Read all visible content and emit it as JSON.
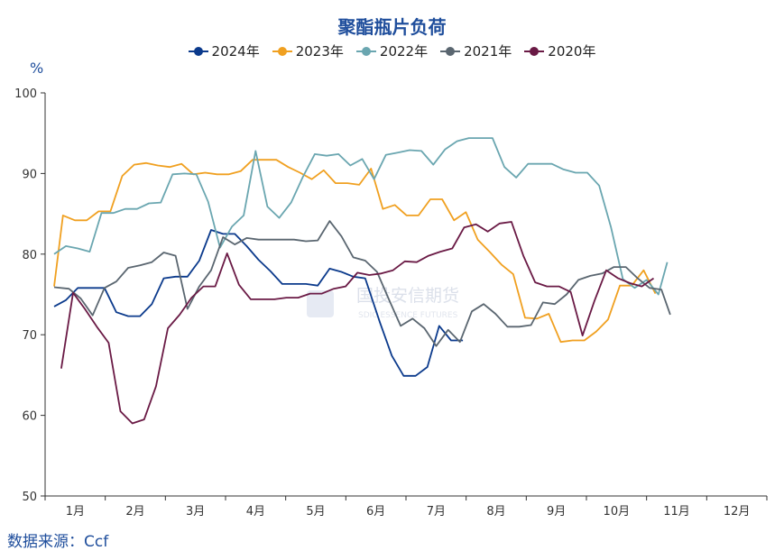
{
  "chart_data": {
    "type": "line",
    "title": "聚酯瓶片负荷",
    "ylabel": "%",
    "xlabel": "",
    "ylim": [
      50,
      100
    ],
    "yticks": [
      50,
      60,
      70,
      80,
      90,
      100
    ],
    "x_range": [
      0,
      12
    ],
    "categories": [
      "1月",
      "2月",
      "3月",
      "4月",
      "5月",
      "6月",
      "7月",
      "8月",
      "9月",
      "10月",
      "11月",
      "12月"
    ],
    "grid": false,
    "legend_position": "top-center",
    "source": "数据来源：Ccf",
    "watermark": "国投安信期货",
    "watermark_sub": "SDIC ESSENCE FUTURES",
    "series": [
      {
        "name": "2024年",
        "color": "#0b3a8c",
        "points": [
          [
            0.0,
            73.5
          ],
          [
            0.2,
            74.3
          ],
          [
            0.4,
            75.8
          ],
          [
            0.6,
            75.8
          ],
          [
            0.85,
            75.8
          ],
          [
            1.05,
            72.8
          ],
          [
            1.25,
            72.3
          ],
          [
            1.45,
            72.3
          ],
          [
            1.65,
            73.8
          ],
          [
            1.85,
            77.0
          ],
          [
            2.05,
            77.2
          ],
          [
            2.25,
            77.2
          ],
          [
            2.45,
            79.2
          ],
          [
            2.65,
            83.0
          ],
          [
            2.85,
            82.5
          ],
          [
            3.05,
            82.5
          ],
          [
            3.25,
            81.0
          ],
          [
            3.45,
            79.3
          ],
          [
            3.65,
            77.9
          ],
          [
            3.85,
            76.3
          ],
          [
            4.05,
            76.3
          ],
          [
            4.25,
            76.3
          ],
          [
            4.45,
            76.1
          ],
          [
            4.65,
            78.2
          ],
          [
            4.85,
            77.8
          ],
          [
            5.05,
            77.2
          ],
          [
            5.25,
            77.0
          ],
          [
            5.5,
            71.5
          ],
          [
            5.7,
            67.4
          ],
          [
            5.9,
            64.9
          ],
          [
            6.1,
            64.9
          ],
          [
            6.3,
            66.0
          ],
          [
            6.5,
            71.1
          ],
          [
            6.7,
            69.3
          ],
          [
            6.9,
            69.3
          ]
        ]
      },
      {
        "name": "2023年",
        "color": "#f0a020",
        "points": [
          [
            0.0,
            76.0
          ],
          [
            0.15,
            84.8
          ],
          [
            0.35,
            84.2
          ],
          [
            0.55,
            84.2
          ],
          [
            0.75,
            85.3
          ],
          [
            0.95,
            85.3
          ],
          [
            1.15,
            89.7
          ],
          [
            1.35,
            91.1
          ],
          [
            1.55,
            91.3
          ],
          [
            1.75,
            91.0
          ],
          [
            1.95,
            90.8
          ],
          [
            2.15,
            91.2
          ],
          [
            2.35,
            89.9
          ],
          [
            2.55,
            90.1
          ],
          [
            2.75,
            89.9
          ],
          [
            2.95,
            89.9
          ],
          [
            3.15,
            90.3
          ],
          [
            3.35,
            91.7
          ],
          [
            3.55,
            91.7
          ],
          [
            3.75,
            91.7
          ],
          [
            3.95,
            90.8
          ],
          [
            4.15,
            90.1
          ],
          [
            4.35,
            89.3
          ],
          [
            4.55,
            90.4
          ],
          [
            4.75,
            88.8
          ],
          [
            4.95,
            88.8
          ],
          [
            5.15,
            88.6
          ],
          [
            5.35,
            90.6
          ],
          [
            5.55,
            85.6
          ],
          [
            5.75,
            86.1
          ],
          [
            5.95,
            84.8
          ],
          [
            6.15,
            84.8
          ],
          [
            6.35,
            86.8
          ],
          [
            6.55,
            86.8
          ],
          [
            6.75,
            84.2
          ],
          [
            6.95,
            85.2
          ],
          [
            7.15,
            81.8
          ],
          [
            7.35,
            80.3
          ],
          [
            7.55,
            78.7
          ],
          [
            7.75,
            77.5
          ],
          [
            7.95,
            72.1
          ],
          [
            8.15,
            72.0
          ],
          [
            8.35,
            72.6
          ],
          [
            8.55,
            69.1
          ],
          [
            8.75,
            69.3
          ],
          [
            8.95,
            69.3
          ],
          [
            9.15,
            70.4
          ],
          [
            9.35,
            71.9
          ],
          [
            9.55,
            76.1
          ],
          [
            9.75,
            76.1
          ],
          [
            9.95,
            78.0
          ],
          [
            10.15,
            75.1
          ]
        ]
      },
      {
        "name": "2022年",
        "color": "#6aa6b0",
        "points": [
          [
            0.0,
            80.0
          ],
          [
            0.2,
            81.0
          ],
          [
            0.4,
            80.7
          ],
          [
            0.6,
            80.3
          ],
          [
            0.8,
            85.1
          ],
          [
            1.0,
            85.1
          ],
          [
            1.2,
            85.6
          ],
          [
            1.4,
            85.6
          ],
          [
            1.6,
            86.3
          ],
          [
            1.8,
            86.4
          ],
          [
            2.0,
            89.9
          ],
          [
            2.2,
            90.0
          ],
          [
            2.4,
            89.9
          ],
          [
            2.6,
            86.5
          ],
          [
            2.8,
            80.8
          ],
          [
            3.0,
            83.4
          ],
          [
            3.2,
            84.8
          ],
          [
            3.4,
            92.8
          ],
          [
            3.6,
            85.9
          ],
          [
            3.8,
            84.5
          ],
          [
            4.0,
            86.4
          ],
          [
            4.2,
            89.6
          ],
          [
            4.4,
            92.4
          ],
          [
            4.6,
            92.2
          ],
          [
            4.8,
            92.4
          ],
          [
            5.0,
            91.0
          ],
          [
            5.2,
            91.8
          ],
          [
            5.4,
            89.3
          ],
          [
            5.6,
            92.3
          ],
          [
            5.8,
            92.6
          ],
          [
            6.0,
            92.9
          ],
          [
            6.2,
            92.8
          ],
          [
            6.4,
            91.1
          ],
          [
            6.6,
            93.0
          ],
          [
            6.8,
            94.0
          ],
          [
            7.0,
            94.4
          ],
          [
            7.2,
            94.4
          ],
          [
            7.4,
            94.4
          ],
          [
            7.6,
            90.8
          ],
          [
            7.8,
            89.5
          ],
          [
            8.0,
            91.2
          ],
          [
            8.2,
            91.2
          ],
          [
            8.4,
            91.2
          ],
          [
            8.6,
            90.5
          ],
          [
            8.8,
            90.1
          ],
          [
            9.0,
            90.1
          ],
          [
            9.2,
            88.5
          ],
          [
            9.4,
            83.3
          ],
          [
            9.6,
            76.9
          ],
          [
            9.8,
            75.8
          ],
          [
            10.0,
            76.8
          ],
          [
            10.2,
            75.0
          ],
          [
            10.35,
            79.0
          ]
        ]
      },
      {
        "name": "2021年",
        "color": "#5a6670",
        "points": [
          [
            0.0,
            75.9
          ],
          [
            0.25,
            75.7
          ],
          [
            0.45,
            74.5
          ],
          [
            0.65,
            72.4
          ],
          [
            0.85,
            75.8
          ],
          [
            1.05,
            76.6
          ],
          [
            1.25,
            78.3
          ],
          [
            1.45,
            78.6
          ],
          [
            1.65,
            79.0
          ],
          [
            1.85,
            80.2
          ],
          [
            2.05,
            79.8
          ],
          [
            2.25,
            73.2
          ],
          [
            2.45,
            76.0
          ],
          [
            2.65,
            78.0
          ],
          [
            2.85,
            82.1
          ],
          [
            3.05,
            81.2
          ],
          [
            3.25,
            82.0
          ],
          [
            3.45,
            81.8
          ],
          [
            3.65,
            81.8
          ],
          [
            3.85,
            81.8
          ],
          [
            4.05,
            81.8
          ],
          [
            4.25,
            81.6
          ],
          [
            4.45,
            81.7
          ],
          [
            4.65,
            84.1
          ],
          [
            4.85,
            82.2
          ],
          [
            5.05,
            79.6
          ],
          [
            5.25,
            79.2
          ],
          [
            5.45,
            77.8
          ],
          [
            5.65,
            74.4
          ],
          [
            5.85,
            71.1
          ],
          [
            6.05,
            72.0
          ],
          [
            6.25,
            70.8
          ],
          [
            6.45,
            68.6
          ],
          [
            6.65,
            70.6
          ],
          [
            6.85,
            69.1
          ],
          [
            7.05,
            72.9
          ],
          [
            7.25,
            73.8
          ],
          [
            7.45,
            72.6
          ],
          [
            7.65,
            71.0
          ],
          [
            7.85,
            71.0
          ],
          [
            8.05,
            71.2
          ],
          [
            8.25,
            74.0
          ],
          [
            8.45,
            73.8
          ],
          [
            8.65,
            75.0
          ],
          [
            8.85,
            76.8
          ],
          [
            9.05,
            77.3
          ],
          [
            9.25,
            77.6
          ],
          [
            9.45,
            78.4
          ],
          [
            9.65,
            78.4
          ],
          [
            9.85,
            77.0
          ],
          [
            10.05,
            75.8
          ],
          [
            10.25,
            75.6
          ],
          [
            10.4,
            72.5
          ]
        ]
      },
      {
        "name": "2020年",
        "color": "#6a1a45",
        "points": [
          [
            0.12,
            65.8
          ],
          [
            0.32,
            75.2
          ],
          [
            0.52,
            73.2
          ],
          [
            0.72,
            71.0
          ],
          [
            0.92,
            69.0
          ],
          [
            1.12,
            60.5
          ],
          [
            1.32,
            59.0
          ],
          [
            1.52,
            59.5
          ],
          [
            1.72,
            63.6
          ],
          [
            1.92,
            70.8
          ],
          [
            2.12,
            72.5
          ],
          [
            2.32,
            74.6
          ],
          [
            2.52,
            76.0
          ],
          [
            2.72,
            76.0
          ],
          [
            2.92,
            80.1
          ],
          [
            3.12,
            76.2
          ],
          [
            3.32,
            74.4
          ],
          [
            3.52,
            74.4
          ],
          [
            3.72,
            74.4
          ],
          [
            3.92,
            74.6
          ],
          [
            4.12,
            74.6
          ],
          [
            4.32,
            75.1
          ],
          [
            4.52,
            75.1
          ],
          [
            4.72,
            75.7
          ],
          [
            4.92,
            76.0
          ],
          [
            5.12,
            77.7
          ],
          [
            5.32,
            77.4
          ],
          [
            5.52,
            77.6
          ],
          [
            5.72,
            78.0
          ],
          [
            5.92,
            79.1
          ],
          [
            6.12,
            79.0
          ],
          [
            6.32,
            79.8
          ],
          [
            6.52,
            80.3
          ],
          [
            6.72,
            80.7
          ],
          [
            6.92,
            83.3
          ],
          [
            7.12,
            83.7
          ],
          [
            7.32,
            82.8
          ],
          [
            7.52,
            83.8
          ],
          [
            7.72,
            84.0
          ],
          [
            7.92,
            79.8
          ],
          [
            8.12,
            76.5
          ],
          [
            8.32,
            76.0
          ],
          [
            8.52,
            76.0
          ],
          [
            8.72,
            75.3
          ],
          [
            8.92,
            69.9
          ],
          [
            9.12,
            74.2
          ],
          [
            9.32,
            78.0
          ],
          [
            9.52,
            77.0
          ],
          [
            9.72,
            76.4
          ],
          [
            9.92,
            76.0
          ],
          [
            10.12,
            77.0
          ]
        ]
      }
    ]
  }
}
